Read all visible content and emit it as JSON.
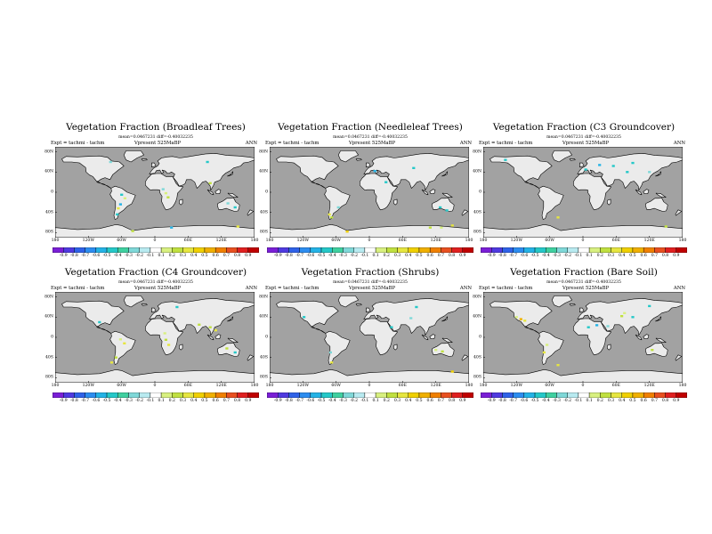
{
  "figure": {
    "panels": [
      {
        "title": "Vegetation Fraction (Broadleaf Trees)",
        "stats": "mean=0.0467231 diff=-0.40032235",
        "expt": "Expt = tachmi - tachm",
        "vver": "Vpresent  525MaBP",
        "season": "ANN"
      },
      {
        "title": "Vegetation Fraction (Needleleaf Trees)",
        "stats": "mean=0.0467231 diff=-0.40032235",
        "expt": "Expt = tachmi - tachm",
        "vver": "Vpresent  525MaBP",
        "season": "ANN"
      },
      {
        "title": "Vegetation Fraction (C3 Groundcover)",
        "stats": "mean=0.0467231 diff=-0.40032235",
        "expt": "Expt = tachmi - tachm",
        "vver": "Vpresent  525MaBP",
        "season": "ANN"
      },
      {
        "title": "Vegetation Fraction (C4 Groundcover)",
        "stats": "mean=0.0467231 diff=-0.40032235",
        "expt": "Expt = tachmi - tachm",
        "vver": "Vpresent  525MaBP",
        "season": "ANN"
      },
      {
        "title": "Vegetation Fraction (Shrubs)",
        "stats": "mean=0.0467231 diff=-0.40032235",
        "expt": "Expt = tachmi - tachm",
        "vver": "Vpresent  525MaBP",
        "season": "ANN"
      },
      {
        "title": "Vegetation Fraction (Bare Soil)",
        "stats": "mean=0.0467231 diff=-0.40032235",
        "expt": "Expt = tachmi - tachm",
        "vver": "Vpresent  525MaBP",
        "season": "ANN"
      }
    ],
    "x_ticks": [
      "180",
      "120W",
      "60W",
      "0",
      "60E",
      "120E",
      "180"
    ],
    "y_ticks": [
      "80N",
      "40N",
      "0",
      "40S",
      "80S"
    ],
    "colorbar_labels": [
      "-0.9",
      "-0.8",
      "-0.7",
      "-0.6",
      "-0.5",
      "-0.4",
      "-0.3",
      "-0.2",
      "-0.1",
      "0.1",
      "0.2",
      "0.3",
      "0.4",
      "0.5",
      "0.6",
      "0.7",
      "0.8",
      "0.9"
    ],
    "colorbar_colors": [
      "#7a1fd6",
      "#4f3ae0",
      "#2f62e8",
      "#2c8df0",
      "#24b3e6",
      "#25c8c8",
      "#3fd0a0",
      "#7fd8d8",
      "#b8eaf0",
      "#ffffff",
      "#d8f080",
      "#c0e040",
      "#e6e640",
      "#f0d000",
      "#f0b000",
      "#f08000",
      "#e85020",
      "#e02020",
      "#c00000"
    ],
    "colors": {
      "ocean": "#a2a2a2",
      "land": "#ebebeb",
      "coast": "#000000"
    }
  }
}
